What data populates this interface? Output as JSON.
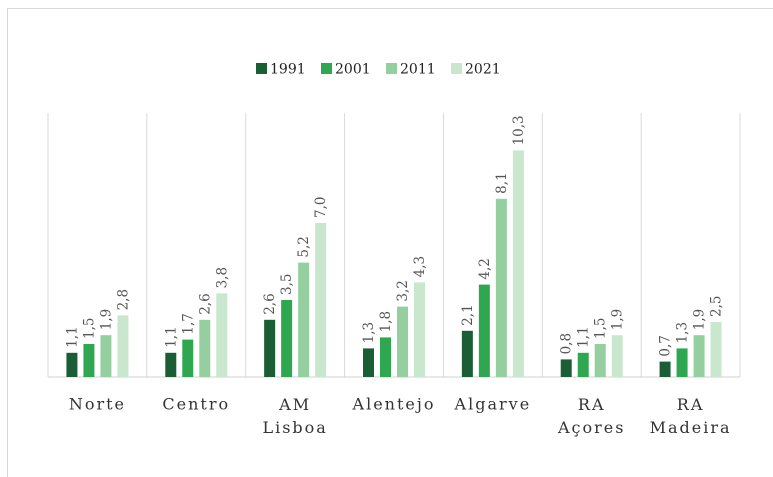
{
  "chart_data": {
    "type": "bar",
    "categories": [
      "Norte",
      "Centro",
      "AM Lisboa",
      "Alentejo",
      "Algarve",
      "RA Açores",
      "RA Madeira"
    ],
    "series": [
      {
        "name": "1991",
        "color": "#1b5e35",
        "values": [
          1.1,
          1.1,
          2.6,
          1.3,
          2.1,
          0.8,
          0.7
        ],
        "value_labels": [
          "1,1",
          "1,1",
          "2,6",
          "1,3",
          "2,1",
          "0,8",
          "0,7"
        ]
      },
      {
        "name": "2001",
        "color": "#2fa750",
        "values": [
          1.5,
          1.7,
          3.5,
          1.8,
          4.2,
          1.1,
          1.3
        ],
        "value_labels": [
          "1,5",
          "1,7",
          "3,5",
          "1,8",
          "4,2",
          "1,1",
          "1,3"
        ]
      },
      {
        "name": "2011",
        "color": "#95cf9f",
        "values": [
          1.9,
          2.6,
          5.2,
          3.2,
          8.1,
          1.5,
          1.9
        ],
        "value_labels": [
          "1,9",
          "2,6",
          "5,2",
          "3,2",
          "8,1",
          "1,5",
          "1,9"
        ]
      },
      {
        "name": "2021",
        "color": "#c9e7cc",
        "values": [
          2.8,
          3.8,
          7.0,
          4.3,
          10.3,
          1.9,
          2.5
        ],
        "value_labels": [
          "2,8",
          "3,8",
          "7,0",
          "4,3",
          "10,3",
          "1,9",
          "2,5"
        ]
      }
    ],
    "ylim": [
      0,
      12
    ],
    "legend": "top"
  }
}
